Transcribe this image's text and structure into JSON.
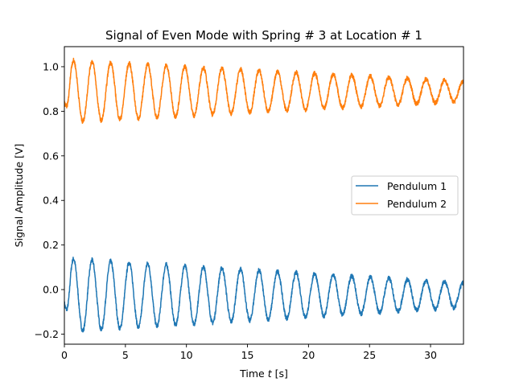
{
  "chart_data": {
    "type": "line",
    "title": "Signal of Even Mode with Spring # 3 at Location # 1",
    "xlabel_text": "Time ",
    "xlabel_italic": "t",
    "xlabel_unit": " [s]",
    "ylabel": "Signal Amplitude [V]",
    "xlim": [
      0,
      32.7
    ],
    "ylim": [
      -0.245,
      1.09
    ],
    "xticks": [
      0,
      5,
      10,
      15,
      20,
      25,
      30
    ],
    "xtick_labels": [
      "0",
      "5",
      "10",
      "15",
      "20",
      "25",
      "30"
    ],
    "yticks": [
      -0.2,
      0.0,
      0.2,
      0.4,
      0.6,
      0.8,
      1.0
    ],
    "ytick_labels": [
      "−0.2",
      "0.0",
      "0.2",
      "0.4",
      "0.6",
      "0.8",
      "1.0"
    ],
    "grid": false,
    "legend_position": "center-right",
    "colors": {
      "pendulum_1": "#1f77b4",
      "pendulum_2": "#ff7f0e"
    },
    "series": [
      {
        "name": "Pendulum 1",
        "color": "#1f77b4",
        "baseline": -0.025,
        "amplitude_start": 0.165,
        "amplitude_end": 0.055,
        "period": 1.52,
        "phase": 0.75,
        "start_value": -0.06,
        "noise": 0.01,
        "duration": 32.7,
        "summary": {
          "max": 0.15,
          "min": -0.19,
          "peak_times": [
            1.1,
            2.6,
            4.1,
            5.6,
            7.1,
            8.6,
            10.1
          ]
        }
      },
      {
        "name": "Pendulum 2",
        "color": "#ff7f0e",
        "baseline": 0.89,
        "amplitude_start": 0.14,
        "amplitude_end": 0.045,
        "period": 1.52,
        "phase": 0.75,
        "start_value": 0.84,
        "noise": 0.01,
        "duration": 32.7,
        "summary": {
          "max": 1.03,
          "min": 0.74,
          "peak_times": [
            1.1,
            2.6,
            4.1,
            5.6,
            7.1,
            8.6,
            10.1
          ]
        }
      }
    ]
  }
}
